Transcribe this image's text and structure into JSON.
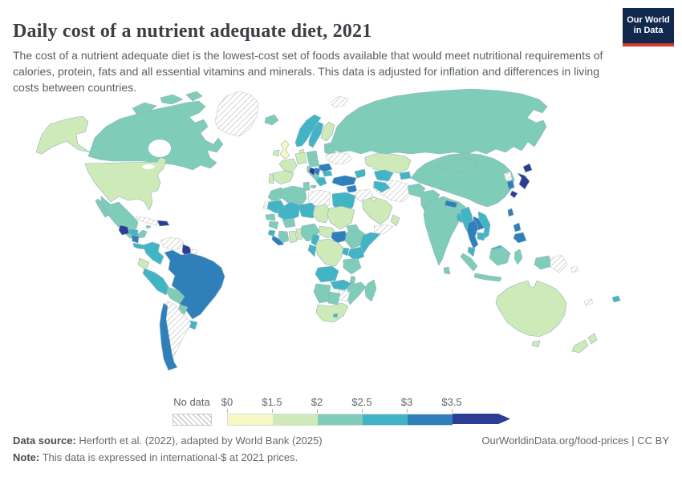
{
  "header": {
    "title": "Daily cost of a nutrient adequate diet, 2021",
    "subtitle": "The cost of a nutrient adequate diet is the lowest-cost set of foods available that would meet nutritional requirements of calories, protein, fats and all essential vitamins and minerals. This data is adjusted for inflation and differences in living costs between countries.",
    "logo": {
      "line1": "Our World",
      "line2": "in Data",
      "bg_color": "#12294e",
      "accent_color": "#d93a2b"
    }
  },
  "legend": {
    "no_data_label": "No data",
    "tick_labels": [
      "$0",
      "$1.5",
      "$2",
      "$2.5",
      "$3",
      "$3.5"
    ]
  },
  "footer": {
    "data_source_label": "Data source:",
    "data_source_text": " Herforth et al. (2022), adapted by World Bank (2025)",
    "note_label": "Note:",
    "note_text": " This data is expressed in international-$ at 2021 prices.",
    "link_text": "OurWorldinData.org/food-prices | CC BY"
  },
  "chart_data": {
    "type": "heatmap",
    "subtype": "world-choropleth",
    "title": "Daily cost of a nutrient adequate diet, 2021",
    "unit": "international-$ at 2021 prices",
    "legend_position": "bottom",
    "no_data_pattern": "diagonal-hatch",
    "bins": [
      {
        "range": "$0-$1.5",
        "color": "#f8f8c5"
      },
      {
        "range": "$1.5-$2",
        "color": "#cdeab8"
      },
      {
        "range": "$2-$2.5",
        "color": "#7fccb9"
      },
      {
        "range": "$2.5-$3",
        "color": "#41b4c5"
      },
      {
        "range": "$3-$3.5",
        "color": "#2f7fbb"
      },
      {
        "range": ">$3.5",
        "color": "#2b3d95"
      }
    ],
    "countries": {
      "United Kingdom": "$0-$1.5",
      "Kuwait": "$0-$1.5",
      "United States": "$1.5-$2",
      "Ireland": "$1.5-$2",
      "France": "$1.5-$2",
      "Spain": "$1.5-$2",
      "Portugal": "$1.5-$2",
      "Germany": "$1.5-$2",
      "Denmark": "$1.5-$2",
      "Finland": "$1.5-$2",
      "Ecuador": "$1.5-$2",
      "Kazakhstan": "$1.5-$2",
      "Saudi Arabia": "$1.5-$2",
      "Oman": "$1.5-$2",
      "Jordan": "$1.5-$2",
      "Sudan": "$1.5-$2",
      "Chad": "$1.5-$2",
      "Central African Republic": "$1.5-$2",
      "Democratic Republic of Congo": "$1.5-$2",
      "Ghana": "$1.5-$2",
      "Benin": "$1.5-$2",
      "South Africa": "$1.5-$2",
      "Australia": "$1.5-$2",
      "New Zealand": "$1.5-$2",
      "Canada": "$2-$2.5",
      "Mexico": "$2-$2.5",
      "Iceland": "$2-$2.5",
      "Italy": "$2-$2.5",
      "Poland": "$2-$2.5",
      "Czechia": "$2-$2.5",
      "Estonia": "$2-$2.5",
      "Belarus": "$2-$2.5",
      "Russia": "$2-$2.5",
      "China": "$2-$2.5",
      "Mongolia": "$2-$2.5",
      "India": "$2-$2.5",
      "Pakistan": "$2-$2.5",
      "Afghanistan": "$2-$2.5",
      "Sri Lanka": "$2-$2.5",
      "Indonesia": "$2-$2.5",
      "Bolivia": "$2-$2.5",
      "Paraguay": "$2-$2.5",
      "Morocco": "$2-$2.5",
      "Algeria": "$2-$2.5",
      "Tunisia": "$2-$2.5",
      "Senegal": "$2-$2.5",
      "Guinea": "$2-$2.5",
      "Burkina Faso": "$2-$2.5",
      "Ivory Coast": "$2-$2.5",
      "Nigeria": "$2-$2.5",
      "Eritrea": "$2-$2.5",
      "Ethiopia": "$2-$2.5",
      "Tanzania": "$2-$2.5",
      "Malawi": "$2-$2.5",
      "Mozambique": "$2-$2.5",
      "Namibia": "$2-$2.5",
      "Botswana": "$2-$2.5",
      "Madagascar": "$2-$2.5",
      "Jamaica": "$2-$2.5",
      "Norway": "$2.5-$3",
      "Sweden": "$2.5-$3",
      "Greece": "$2.5-$3",
      "Bulgaria": "$2.5-$3",
      "Georgia": "$2.5-$3",
      "Uzbekistan": "$2.5-$3",
      "Turkmenistan": "$2.5-$3",
      "Kyrgyzstan": "$2.5-$3",
      "Egypt": "$2.5-$3",
      "Mauritania": "$2.5-$3",
      "Mali": "$2.5-$3",
      "Niger": "$2.5-$3",
      "Sierra Leone": "$2.5-$3",
      "Cameroon": "$2.5-$3",
      "Gabon": "$2.5-$3",
      "Uganda": "$2.5-$3",
      "Kenya": "$2.5-$3",
      "Somalia": "$2.5-$3",
      "Angola": "$2.5-$3",
      "Zambia": "$2.5-$3",
      "Lesotho": "$2.5-$3",
      "Honduras": "$2.5-$3",
      "Panama": "$2.5-$3",
      "Colombia": "$2.5-$3",
      "Peru": "$2.5-$3",
      "Uruguay": "$2.5-$3",
      "Myanmar": "$2.5-$3",
      "Vietnam": "$2.5-$3",
      "Cambodia": "$2.5-$3",
      "Malaysia": "$2.5-$3",
      "Bangladesh": "$2.5-$3",
      "Fiji": "$2.5-$3",
      "Brazil": "$3-$3.5",
      "Chile": "$3-$3.5",
      "Turkey": "$3-$3.5",
      "Syria": "$3-$3.5",
      "Romania": "$3-$3.5",
      "Serbia": "$3-$3.5",
      "Liberia": "$3-$3.5",
      "South Sudan": "$3-$3.5",
      "Thailand": "$3-$3.5",
      "Laos": "$3-$3.5",
      "Nepal": "$3-$3.5",
      "South Korea": "$3-$3.5",
      "Taiwan": "$3-$3.5",
      "Nicaragua": "$3-$3.5",
      "Philippines": "$3-$3.5",
      "Japan": ">$3.5",
      "Guatemala": ">$3.5",
      "Dominican Republic": ">$3.5",
      "Guyana": ">$3.5",
      "Bosnia and Herzegovina": ">$3.5",
      "Montenegro": ">$3.5",
      "Greenland": "No data",
      "Cuba": "No data",
      "Venezuela": "No data",
      "Suriname": "No data",
      "Argentina": "No data",
      "Ukraine": "No data",
      "Libya": "No data",
      "Western Sahara": "No data",
      "Zimbabwe": "No data",
      "Iraq": "No data",
      "Iran": "No data",
      "Yemen": "No data",
      "North Korea": "No data",
      "Papua New Guinea": "No data",
      "Solomon Islands": "No data",
      "New Caledonia": "No data",
      "Svalbard": "No data"
    }
  }
}
